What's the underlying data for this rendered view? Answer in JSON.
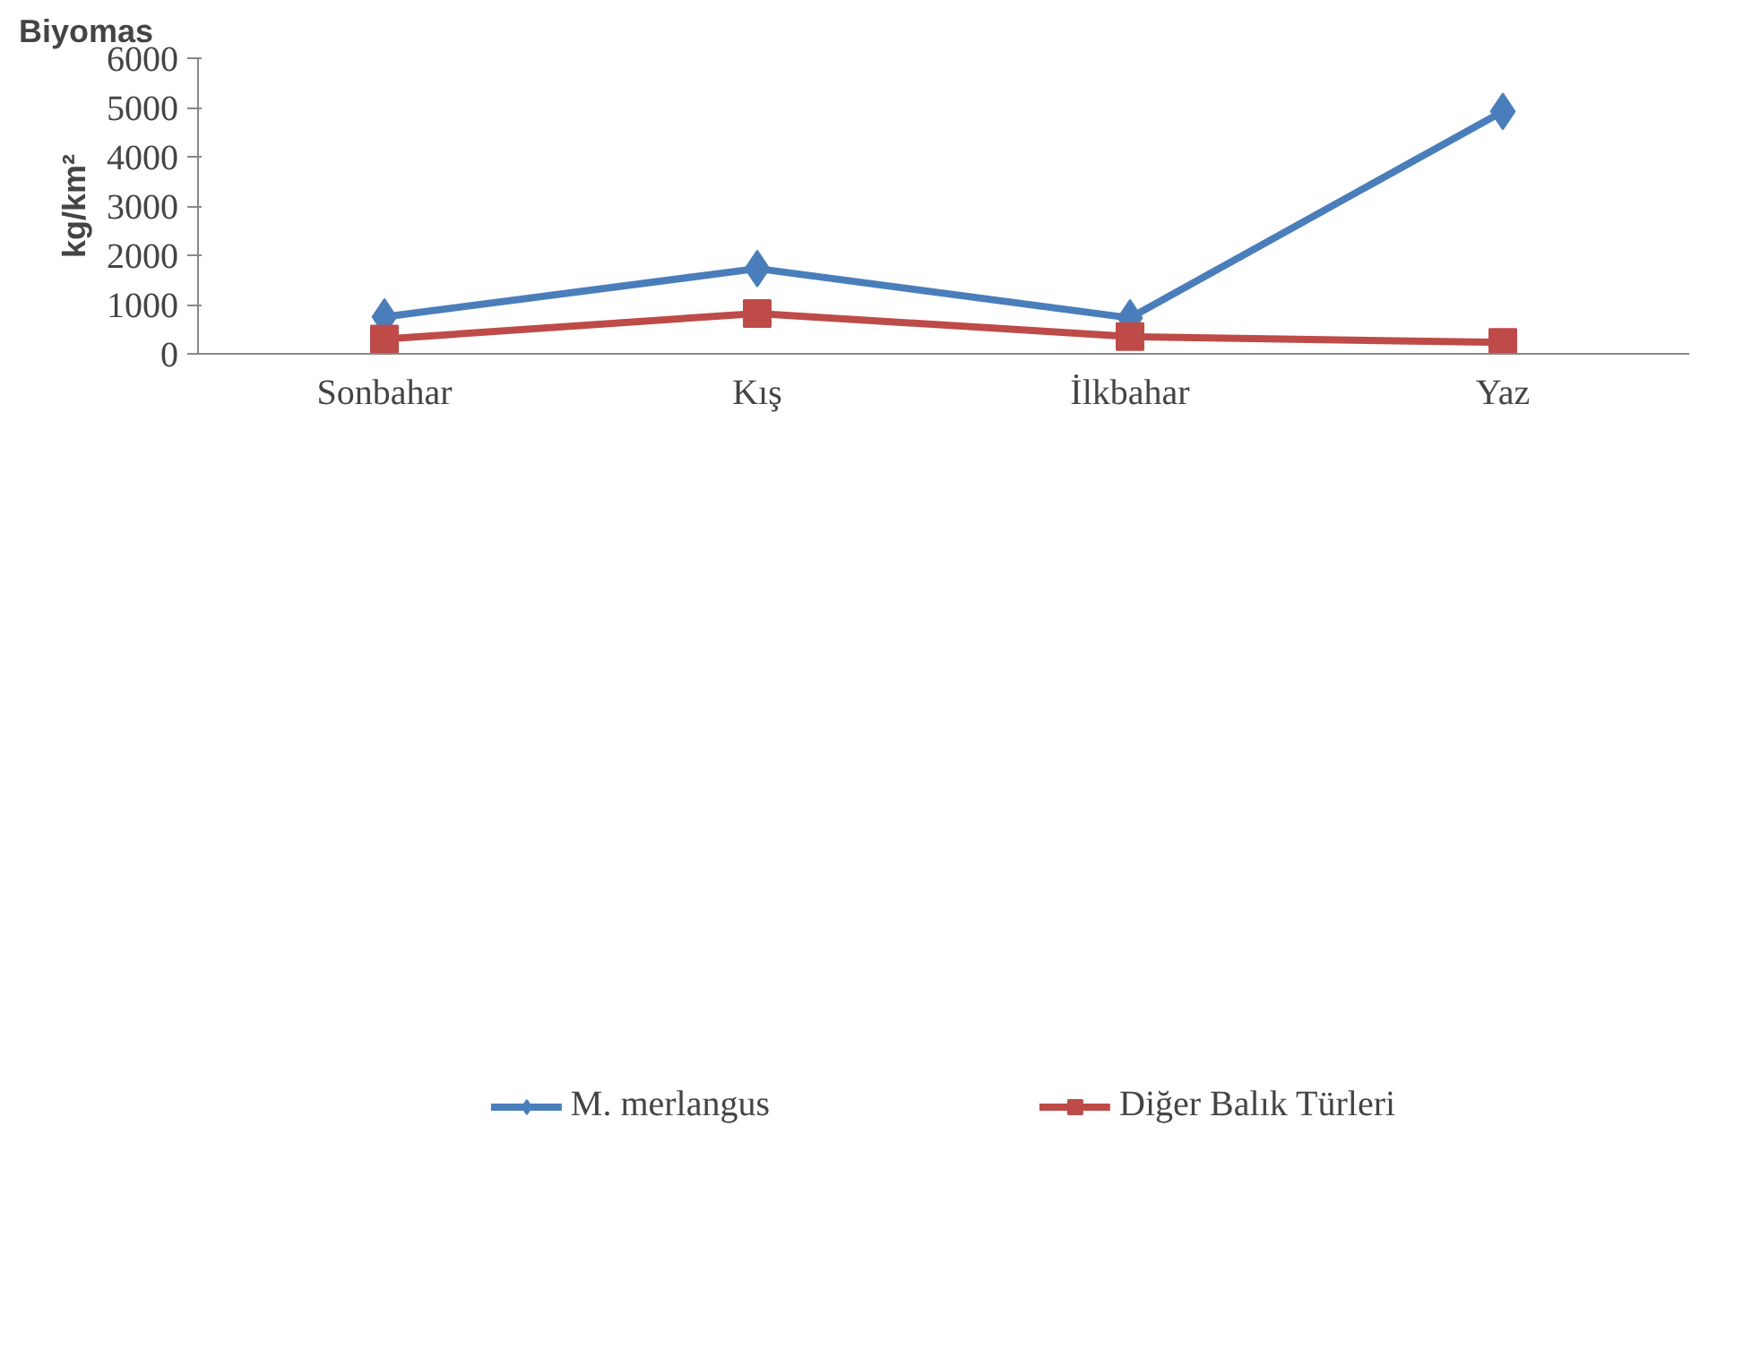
{
  "chart_data": {
    "type": "line",
    "title": "Biyomas",
    "ylabel": "kg/km²",
    "categories": [
      "Sonbahar",
      "Kış",
      "İlkbahar",
      "Yaz"
    ],
    "series": [
      {
        "name": "M. merlangus",
        "color": "#4a7ebb",
        "marker": "diamond",
        "values": [
          750,
          1730,
          730,
          4920
        ]
      },
      {
        "name": "Diğer Balık Türleri",
        "color": "#be4b48",
        "marker": "square",
        "values": [
          300,
          820,
          350,
          230
        ]
      }
    ],
    "ylim": [
      0,
      6000
    ],
    "yticks": [
      0,
      1000,
      2000,
      3000,
      4000,
      5000,
      6000
    ],
    "grid": false,
    "legend": "bottom",
    "line_style": "solid"
  }
}
